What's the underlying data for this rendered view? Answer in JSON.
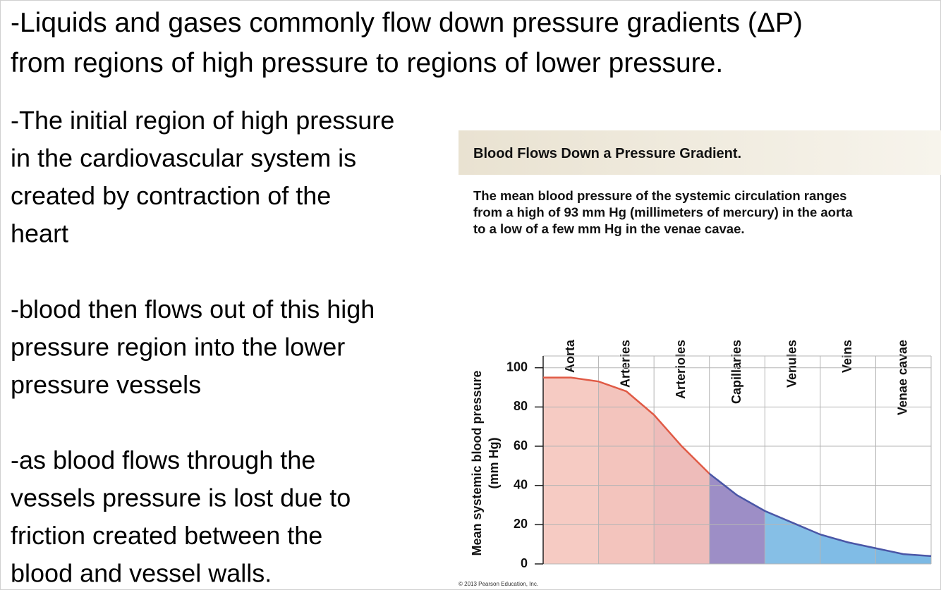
{
  "slide": {
    "heading": [
      "-Liquids and gases commonly flow down pressure gradients (ΔP)",
      "from regions of high pressure to regions of lower pressure."
    ],
    "bullets": [
      [
        "-The initial region of high pressure",
        "in the cardiovascular system is",
        "created by contraction of the",
        "heart"
      ],
      [
        "-blood then flows out of this high",
        "pressure region into the lower",
        "pressure vessels"
      ],
      [
        "-as blood flows through the",
        "vessels pressure is lost due to",
        "friction created between the",
        "blood and vessel walls."
      ]
    ],
    "credit": "© 2013 Pearson Education, Inc."
  },
  "chart_data": {
    "type": "area",
    "title": "Blood Flows Down a Pressure Gradient.",
    "subtitle": [
      "The mean blood pressure of the systemic circulation ranges",
      "from a high of 93 mm Hg (millimeters of mercury) in the aorta",
      "to a low of a few mm Hg in the venae cavae."
    ],
    "categories": [
      "Aorta",
      "Arteries",
      "Arterioles",
      "Capillaries",
      "Venules",
      "Veins",
      "Venae cavae"
    ],
    "fill_colors": [
      "#f6cbc3",
      "#f3c4bd",
      "#eebcba",
      "#9d8ec6",
      "#86bfe6",
      "#80bce6",
      "#7cb9e4"
    ],
    "x": [
      0,
      0.5,
      1,
      1.5,
      2,
      2.5,
      3,
      3.5,
      4,
      4.5,
      5,
      5.5,
      6,
      6.5,
      7
    ],
    "values": [
      95,
      95,
      93,
      88,
      76,
      60,
      46,
      35,
      27,
      21,
      15,
      11,
      8,
      5,
      4
    ],
    "line_colors": [
      "#e05a45",
      "#4a56a6"
    ],
    "color_break": 3,
    "xlim": [
      0,
      7
    ],
    "ylim": [
      0,
      106
    ],
    "yticks": [
      0,
      20,
      40,
      60,
      80,
      100
    ],
    "ylabel": "Mean systemic blood pressure",
    "yunit": "(mm Hg)",
    "grid": true
  }
}
